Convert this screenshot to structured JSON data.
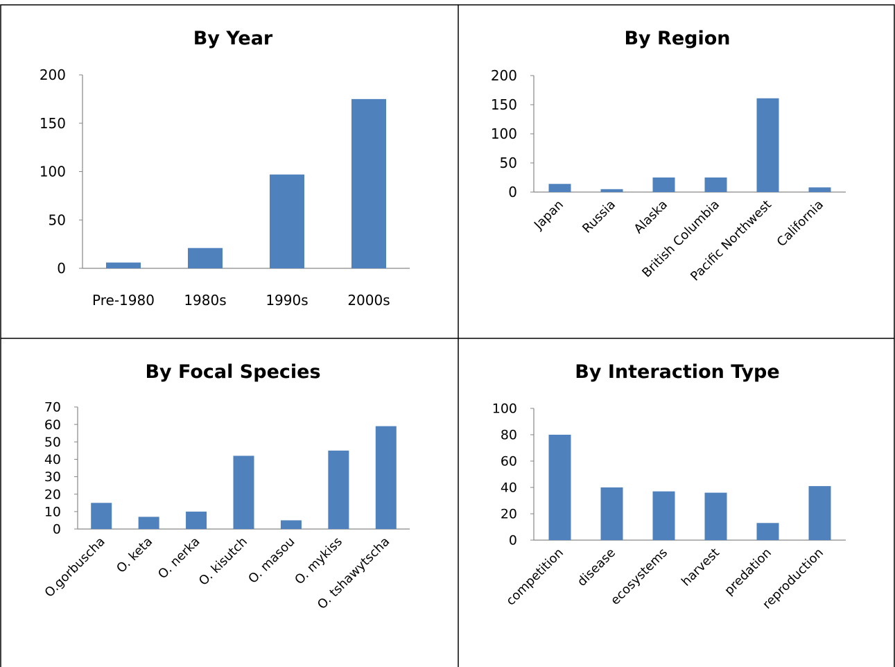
{
  "colors": {
    "bar": "#4F81BD",
    "axis": "#868686",
    "border": "#000000"
  },
  "chart_data": [
    {
      "type": "bar",
      "title": "By Year",
      "categories": [
        "Pre-1980",
        "1980s",
        "1990s",
        "2000s"
      ],
      "values": [
        6,
        21,
        97,
        175
      ],
      "ylim": [
        0,
        200
      ],
      "yticks": [
        0,
        50,
        100,
        150,
        200
      ],
      "xlabel": "",
      "ylabel": "",
      "grid": false,
      "legend": "none"
    },
    {
      "type": "bar",
      "title": "By Region",
      "categories": [
        "Japan",
        "Russia",
        "Alaska",
        "British Columbia",
        "Pacific Northwest",
        "California"
      ],
      "values": [
        14,
        5,
        25,
        25,
        161,
        8
      ],
      "ylim": [
        0,
        200
      ],
      "yticks": [
        0,
        50,
        100,
        150,
        200
      ],
      "xlabel": "",
      "ylabel": "",
      "grid": false,
      "legend": "none"
    },
    {
      "type": "bar",
      "title": "By Focal Species",
      "categories": [
        "O.gorbuscha",
        "O. keta",
        "O. nerka",
        "O. kisutch",
        "O. masou",
        "O. mykiss",
        "O. tshawytscha"
      ],
      "values": [
        15,
        7,
        10,
        42,
        5,
        45,
        59
      ],
      "ylim": [
        0,
        70
      ],
      "yticks": [
        0,
        10,
        20,
        30,
        40,
        50,
        60,
        70
      ],
      "xlabel": "",
      "ylabel": "",
      "grid": false,
      "legend": "none"
    },
    {
      "type": "bar",
      "title": "By Interaction Type",
      "categories": [
        "competition",
        "disease",
        "ecosystems",
        "harvest",
        "predation",
        "reproduction"
      ],
      "values": [
        80,
        40,
        37,
        36,
        13,
        41
      ],
      "ylim": [
        0,
        100
      ],
      "yticks": [
        0,
        20,
        40,
        60,
        80,
        100
      ],
      "xlabel": "",
      "ylabel": "",
      "grid": false,
      "legend": "none"
    }
  ]
}
